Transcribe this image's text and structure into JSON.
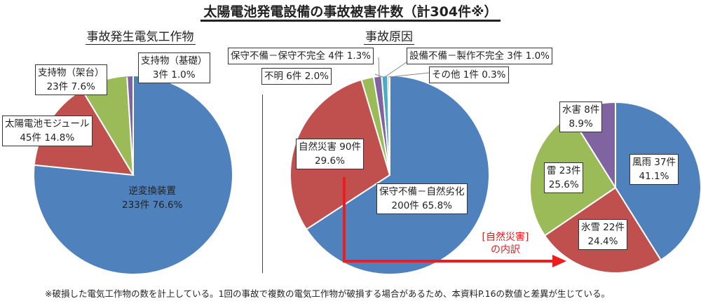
{
  "title": "太陽電池発電設備の事故被害件数（計304件※）",
  "footnote": "※破損した電気工作物の数を計上している。1回の事故で複数の電気工作物が破損する場合があるため、本資料P.16の数値と差異が生じている。",
  "breakdown_label": {
    "line1": "[自然災害]",
    "line2": "の内訳"
  },
  "chart_data": [
    {
      "type": "pie",
      "title": "事故発生電気工作物",
      "slices": [
        {
          "name": "逆変換装置",
          "count_label": "233件",
          "pct_label": "76.6%",
          "value": 76.6,
          "color": "#4f81bd"
        },
        {
          "name": "太陽電池モジュール",
          "count_label": "45件",
          "pct_label": "14.8%",
          "value": 14.8,
          "color": "#c0504d"
        },
        {
          "name": "支持物（架台）",
          "count_label": "23件",
          "pct_label": "7.6%",
          "value": 7.6,
          "color": "#9bbb59"
        },
        {
          "name": "支持物（基礎）",
          "count_label": "3件",
          "pct_label": "1.0%",
          "value": 1.0,
          "color": "#8064a2"
        }
      ]
    },
    {
      "type": "pie",
      "title": "事故原因",
      "slices": [
        {
          "name": "保守不備－自然劣化",
          "count_label": "200件",
          "pct_label": "65.8%",
          "value": 65.8,
          "color": "#4f81bd"
        },
        {
          "name": "自然災害",
          "count_label": "90件",
          "pct_label": "29.6%",
          "value": 29.6,
          "color": "#c0504d"
        },
        {
          "name": "不明",
          "count_label": "6件",
          "pct_label": "2.0%",
          "value": 2.0,
          "color": "#9bbb59"
        },
        {
          "name": "保守不備－保守不完全",
          "count_label": "4件",
          "pct_label": "1.3%",
          "value": 1.3,
          "color": "#8064a2"
        },
        {
          "name": "設備不備－製作不完全",
          "count_label": "3件",
          "pct_label": "1.0%",
          "value": 1.0,
          "color": "#4bacc6"
        },
        {
          "name": "その他",
          "count_label": "1件",
          "pct_label": "0.3%",
          "value": 0.3,
          "color": "#f79646"
        }
      ]
    },
    {
      "type": "pie",
      "title": "[自然災害]の内訳",
      "slices": [
        {
          "name": "風雨",
          "count_label": "37件",
          "pct_label": "41.1%",
          "value": 41.1,
          "color": "#4f81bd"
        },
        {
          "name": "氷雪",
          "count_label": "22件",
          "pct_label": "24.4%",
          "value": 24.4,
          "color": "#c0504d"
        },
        {
          "name": "雷",
          "count_label": "23件",
          "pct_label": "25.6%",
          "value": 25.6,
          "color": "#9bbb59"
        },
        {
          "name": "水害",
          "count_label": "8件",
          "pct_label": "8.9%",
          "value": 8.9,
          "color": "#8064a2"
        }
      ]
    }
  ]
}
